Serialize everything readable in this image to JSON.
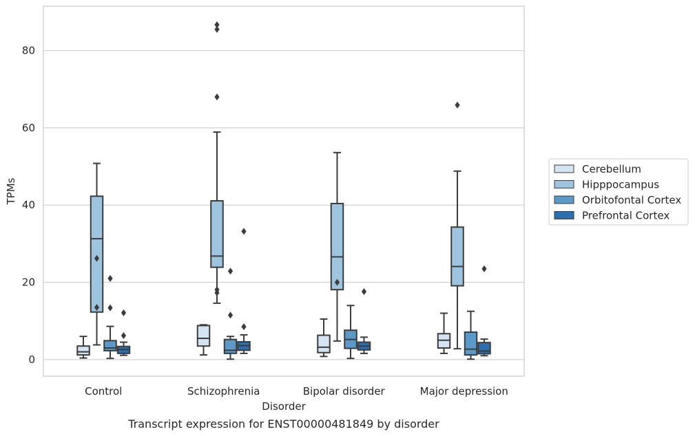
{
  "chart_data": {
    "type": "box",
    "caption": "Transcript expression for ENST00000481849 by disorder",
    "xlabel": "Disorder",
    "ylabel": "TPMs",
    "ylim": [
      -4.3,
      91.5
    ],
    "yticks": [
      0,
      20,
      40,
      60,
      80
    ],
    "grid": "horizontal",
    "legend_position": "right",
    "categories": [
      "Control",
      "Schizophrenia",
      "Bipolar disorder",
      "Major depression"
    ],
    "series": [
      {
        "name": "Cerebellum",
        "color": "#d4e3f1",
        "boxes": [
          {
            "whislo": 0.4,
            "q1": 1.2,
            "med": 2.0,
            "q3": 3.5,
            "whishi": 6.0,
            "fliers": []
          },
          {
            "whislo": 1.2,
            "q1": 3.5,
            "med": 5.5,
            "q3": 8.8,
            "whishi": 9.0,
            "fliers": []
          },
          {
            "whislo": 0.8,
            "q1": 1.8,
            "med": 3.2,
            "q3": 6.3,
            "whishi": 10.5,
            "fliers": []
          },
          {
            "whislo": 1.6,
            "q1": 3.0,
            "med": 5.0,
            "q3": 6.7,
            "whishi": 12.0,
            "fliers": []
          }
        ]
      },
      {
        "name": "Hipppocampus",
        "color": "#9ec5df",
        "boxes": [
          {
            "whislo": 3.8,
            "q1": 12.3,
            "med": 31.3,
            "q3": 42.3,
            "whishi": 50.8,
            "fliers": [
              13.5,
              26.2
            ]
          },
          {
            "whislo": 14.6,
            "q1": 23.9,
            "med": 26.8,
            "q3": 41.1,
            "whishi": 58.9,
            "fliers": [
              17.3,
              18.1,
              68.0,
              85.5,
              86.7
            ]
          },
          {
            "whislo": 4.8,
            "q1": 18.1,
            "med": 26.6,
            "q3": 40.4,
            "whishi": 53.6,
            "fliers": [
              20.0
            ]
          },
          {
            "whislo": 2.8,
            "q1": 19.1,
            "med": 24.1,
            "q3": 34.3,
            "whishi": 48.8,
            "fliers": [
              65.9
            ]
          }
        ]
      },
      {
        "name": "Orbitofontal Cortex",
        "color": "#5b9ac8",
        "boxes": [
          {
            "whislo": 0.3,
            "q1": 2.3,
            "med": 3.0,
            "q3": 4.9,
            "whishi": 8.6,
            "fliers": [
              13.4,
              21.0
            ]
          },
          {
            "whislo": 0.1,
            "q1": 1.6,
            "med": 2.4,
            "q3": 5.2,
            "whishi": 6.0,
            "fliers": [
              11.5,
              22.9
            ]
          },
          {
            "whislo": 0.3,
            "q1": 2.9,
            "med": 5.2,
            "q3": 7.6,
            "whishi": 14.0,
            "fliers": []
          },
          {
            "whislo": 0.1,
            "q1": 1.2,
            "med": 2.7,
            "q3": 7.1,
            "whishi": 12.5,
            "fliers": []
          }
        ]
      },
      {
        "name": "Prefrontal Cortex",
        "color": "#2a6fb0",
        "boxes": [
          {
            "whislo": 1.1,
            "q1": 1.6,
            "med": 2.6,
            "q3": 3.4,
            "whishi": 4.5,
            "fliers": [
              6.2,
              12.1
            ]
          },
          {
            "whislo": 1.6,
            "q1": 2.4,
            "med": 3.6,
            "q3": 4.6,
            "whishi": 6.4,
            "fliers": [
              8.5,
              33.2
            ]
          },
          {
            "whislo": 1.6,
            "q1": 2.5,
            "med": 3.5,
            "q3": 4.5,
            "whishi": 5.8,
            "fliers": [
              17.6
            ]
          },
          {
            "whislo": 1.0,
            "q1": 1.5,
            "med": 2.2,
            "q3": 4.4,
            "whishi": 5.3,
            "fliers": [
              23.5
            ]
          }
        ]
      }
    ]
  }
}
